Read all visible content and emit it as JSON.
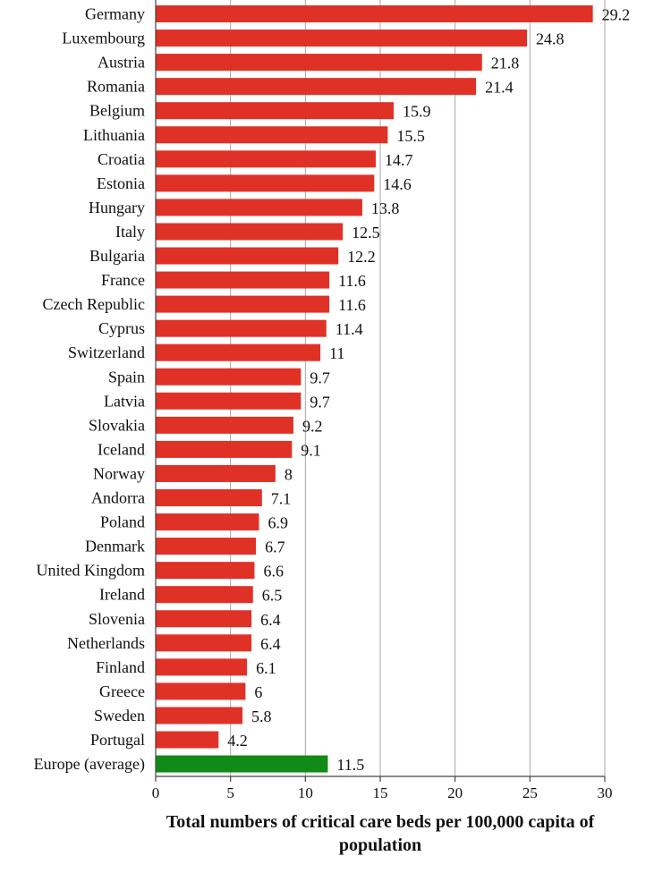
{
  "chart_data": {
    "type": "bar",
    "orientation": "horizontal",
    "categories": [
      "Germany",
      "Luxembourg",
      "Austria",
      "Romania",
      "Belgium",
      "Lithuania",
      "Croatia",
      "Estonia",
      "Hungary",
      "Italy",
      "Bulgaria",
      "France",
      "Czech Republic",
      "Cyprus",
      "Switzerland",
      "Spain",
      "Latvia",
      "Slovakia",
      "Iceland",
      "Norway",
      "Andorra",
      "Poland",
      "Denmark",
      "United Kingdom",
      "Ireland",
      "Slovenia",
      "Netherlands",
      "Finland",
      "Greece",
      "Sweden",
      "Portugal",
      "Europe (average)"
    ],
    "values": [
      29.2,
      24.8,
      21.8,
      21.4,
      15.9,
      15.5,
      14.7,
      14.6,
      13.8,
      12.5,
      12.2,
      11.6,
      11.6,
      11.4,
      11,
      9.7,
      9.7,
      9.2,
      9.1,
      8,
      7.1,
      6.9,
      6.7,
      6.6,
      6.5,
      6.4,
      6.4,
      6.1,
      6,
      5.8,
      4.2,
      11.5
    ],
    "value_labels": [
      "29.2",
      "24.8",
      "21.8",
      "21.4",
      "15.9",
      "15.5",
      "14.7",
      "14.6",
      "13.8",
      "12.5",
      "12.2",
      "11.6",
      "11.6",
      "11.4",
      "11",
      "9.7",
      "9.7",
      "9.2",
      "9.1",
      "8",
      "7.1",
      "6.9",
      "6.7",
      "6.6",
      "6.5",
      "6.4",
      "6.4",
      "6.1",
      "6",
      "5.8",
      "4.2",
      "11.5"
    ],
    "highlight_category": "Europe (average)",
    "colors": {
      "bar": "#e03127",
      "highlight_bar": "#128a17",
      "grid": "#a6a6a6",
      "axis": "#444444"
    },
    "xlim": [
      0,
      30
    ],
    "xticks": [
      0,
      5,
      10,
      15,
      20,
      25,
      30
    ],
    "xtick_labels": [
      "0",
      "5",
      "10",
      "15",
      "20",
      "25",
      "30"
    ],
    "xlabel": "Total numbers of critical care beds per 100,000 capita of population",
    "xlabel_lines": [
      "Total numbers of critical care beds per 100,000 capita of",
      "population"
    ],
    "grid": true,
    "legend": "none"
  }
}
